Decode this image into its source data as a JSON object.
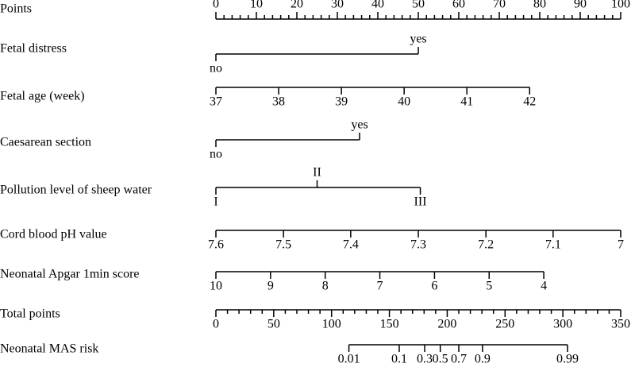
{
  "chart_data": {
    "type": "nomogram",
    "rows": [
      {
        "label": "Points",
        "scale": "points",
        "ticks": [
          0,
          10,
          20,
          30,
          40,
          50,
          60,
          70,
          80,
          90,
          100
        ],
        "minor_ticks": [
          2,
          4,
          6,
          8,
          12,
          14,
          16,
          18,
          22,
          24,
          26,
          28,
          32,
          34,
          36,
          38,
          42,
          44,
          46,
          48,
          52,
          54,
          56,
          58,
          62,
          64,
          66,
          68,
          72,
          74,
          76,
          78,
          82,
          84,
          86,
          88,
          92,
          94,
          96,
          98
        ]
      },
      {
        "label": "Fetal distress",
        "scale": "points",
        "ticks": [
          {
            "value": 0,
            "label": "no"
          },
          {
            "value": 50,
            "label": "yes"
          }
        ]
      },
      {
        "label": "Fetal age (week)",
        "scale": "points",
        "ticks": [
          {
            "value": 0,
            "label": "37"
          },
          {
            "value": 15.5,
            "label": "38"
          },
          {
            "value": 31,
            "label": "39"
          },
          {
            "value": 46.5,
            "label": "40"
          },
          {
            "value": 62,
            "label": "41"
          },
          {
            "value": 77.5,
            "label": "42"
          }
        ]
      },
      {
        "label": "Caesarean section",
        "scale": "points",
        "ticks": [
          {
            "value": 0,
            "label": "no"
          },
          {
            "value": 35.5,
            "label": "yes"
          }
        ]
      },
      {
        "label": "Pollution level of sheep water",
        "scale": "points",
        "ticks": [
          {
            "value": 0,
            "label": "I"
          },
          {
            "value": 25,
            "label": "II"
          },
          {
            "value": 50.5,
            "label": "III"
          }
        ]
      },
      {
        "label": "Cord blood pH value",
        "scale": "points",
        "ticks": [
          {
            "value": 0,
            "label": "7.6"
          },
          {
            "value": 16.7,
            "label": "7.5"
          },
          {
            "value": 33.3,
            "label": "7.4"
          },
          {
            "value": 50,
            "label": "7.3"
          },
          {
            "value": 66.7,
            "label": "7.2"
          },
          {
            "value": 83.3,
            "label": "7.1"
          },
          {
            "value": 100,
            "label": "7"
          }
        ]
      },
      {
        "label": "Neonatal Apgar 1min score",
        "scale": "points",
        "ticks": [
          {
            "value": 0,
            "label": "10"
          },
          {
            "value": 13.5,
            "label": "9"
          },
          {
            "value": 27,
            "label": "8"
          },
          {
            "value": 40.5,
            "label": "7"
          },
          {
            "value": 54,
            "label": "6"
          },
          {
            "value": 67.5,
            "label": "5"
          },
          {
            "value": 81,
            "label": "4"
          }
        ]
      },
      {
        "label": "Total points",
        "scale": "total",
        "ticks": [
          0,
          50,
          100,
          150,
          200,
          250,
          300,
          350
        ],
        "minor_ticks": [
          10,
          20,
          30,
          40,
          60,
          70,
          80,
          90,
          110,
          120,
          130,
          140,
          160,
          170,
          180,
          190,
          210,
          220,
          230,
          240,
          260,
          270,
          280,
          290,
          310,
          320,
          330,
          340
        ]
      },
      {
        "label": "Neonatal MAS risk",
        "scale": "total",
        "ticks": [
          {
            "value": 115,
            "label": "0.01"
          },
          {
            "value": 158.5,
            "label": "0.1"
          },
          {
            "value": 180.5,
            "label": "0.3"
          },
          {
            "value": 194,
            "label": "0.5"
          },
          {
            "value": 210,
            "label": "0.7"
          },
          {
            "value": 230.5,
            "label": "0.9"
          },
          {
            "value": 304,
            "label": "0.99"
          }
        ]
      }
    ],
    "points_lim": [
      0,
      100
    ],
    "total_lim": [
      0,
      350
    ]
  }
}
